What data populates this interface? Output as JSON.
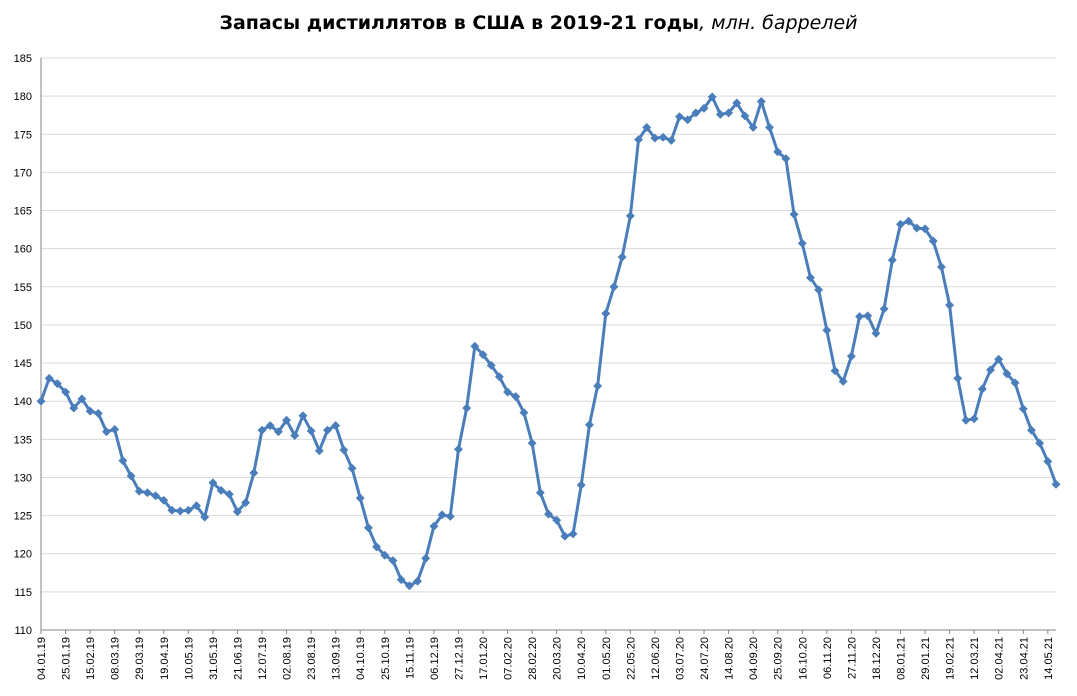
{
  "chart_data": {
    "type": "line",
    "title": "Запасы дистиллятов в США в 2019-21 годы",
    "title_unit": ", млн. баррелей",
    "xlabel": "",
    "ylabel": "",
    "ylim": [
      110,
      185
    ],
    "yticks": [
      110,
      115,
      120,
      125,
      130,
      135,
      140,
      145,
      150,
      155,
      160,
      165,
      170,
      175,
      180,
      185
    ],
    "grid": true,
    "legend": "none",
    "series_color": "#4A7EBB",
    "x_tick_labels": [
      "04.01.19",
      "25.01.19",
      "15.02.19",
      "08.03.19",
      "29.03.19",
      "19.04.19",
      "10.05.19",
      "31.05.19",
      "21.06.19",
      "12.07.19",
      "02.08.19",
      "23.08.19",
      "13.09.19",
      "04.10.19",
      "25.10.19",
      "15.11.19",
      "06.12.19",
      "27.12.19",
      "17.01.20",
      "07.02.20",
      "28.02.20",
      "20.03.20",
      "10.04.20",
      "01.05.20",
      "22.05.20",
      "12.06.20",
      "03.07.20",
      "24.07.20",
      "14.08.20",
      "04.09.20",
      "25.09.20",
      "16.10.20",
      "06.11.20",
      "27.11.20",
      "18.12.20",
      "08.01.21",
      "29.01.21",
      "19.02.21",
      "12.03.21",
      "02.04.21",
      "23.04.21",
      "14.05.21"
    ],
    "series": [
      {
        "values": [
          140.0,
          143.0,
          142.3,
          141.2,
          139.1,
          140.3,
          138.7,
          138.4,
          136.0,
          136.3,
          132.2,
          130.2,
          128.2,
          128.0,
          127.6,
          127.0,
          125.7,
          125.6,
          125.7,
          126.3,
          124.8,
          129.3,
          128.3,
          127.8,
          125.5,
          126.7,
          130.6,
          136.2,
          136.8,
          136.0,
          137.5,
          135.5,
          138.1,
          136.1,
          133.5,
          136.2,
          136.8,
          133.6,
          131.2,
          127.3,
          123.4,
          120.9,
          119.8,
          119.1,
          116.6,
          115.8,
          116.4,
          119.4,
          123.6,
          125.1,
          124.9,
          133.7,
          139.1,
          147.2,
          146.1,
          144.7,
          143.2,
          141.2,
          140.6,
          138.5,
          134.5,
          128.0,
          125.2,
          124.4,
          122.3,
          122.6,
          129.0,
          136.9,
          142.0,
          151.5,
          155.0,
          158.9,
          164.3,
          174.3,
          175.9,
          174.5,
          174.6,
          174.2,
          177.3,
          176.9,
          177.8,
          178.4,
          179.9,
          177.6,
          177.8,
          179.1,
          177.4,
          175.9,
          179.3,
          175.9,
          172.7,
          171.8,
          164.5,
          160.7,
          156.2,
          154.6,
          149.3,
          144.0,
          142.6,
          145.9,
          151.1,
          151.2,
          148.9,
          152.1,
          158.5,
          163.2,
          163.6,
          162.7,
          162.6,
          161.0,
          157.6,
          152.6,
          143.0,
          137.5,
          137.7,
          141.6,
          144.1,
          145.5,
          143.6,
          142.4,
          139.0,
          136.2,
          134.5,
          132.1,
          129.1
        ]
      }
    ]
  }
}
